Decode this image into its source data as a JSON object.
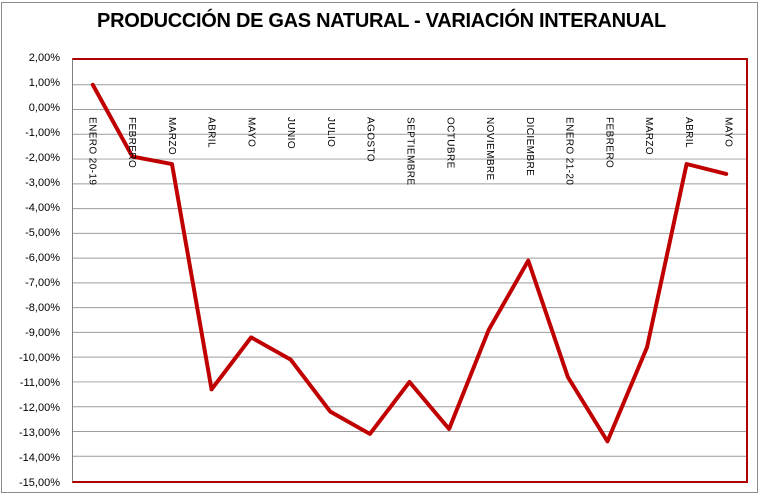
{
  "window": {
    "background": "#FFFFFF",
    "frame_border_color": "#8C8C8C"
  },
  "chart_data": {
    "type": "line",
    "title": "PRODUCCIÓN DE GAS NATURAL - VARIACIÓN INTERANUAL",
    "categories": [
      "ENERO 20-19",
      "FEBRERO",
      "MARZO",
      "ABRIL",
      "MAYO",
      "JUNIO",
      "JULIO",
      "AGOSTO",
      "SEPTIEMBRE",
      "OCTUBRE",
      "NOVIEMBRE",
      "DICIEMBRE",
      "ENERO 21-20",
      "FEBRERO",
      "MARZO",
      "ABRIL",
      "MAYO"
    ],
    "values": [
      1.0,
      -1.9,
      -2.2,
      -11.3,
      -9.2,
      -10.1,
      -12.2,
      -13.1,
      -11.0,
      -12.9,
      -8.9,
      -6.1,
      -10.8,
      -13.4,
      -9.6,
      -2.2,
      -2.6
    ],
    "unit": "%",
    "xlabel": "",
    "ylabel": "",
    "ylim": [
      -15,
      2
    ],
    "y_step": 1,
    "y_tick_labels": [
      "2,00%",
      "1,00%",
      "0,00%",
      "-1,00%",
      "-2,00%",
      "-3,00%",
      "-4,00%",
      "-5,00%",
      "-6,00%",
      "-7,00%",
      "-8,00%",
      "-9,00%",
      "-10,00%",
      "-11,00%",
      "-12,00%",
      "-13,00%",
      "-14,00%",
      "-15,00%"
    ],
    "grid": true,
    "legend": "none",
    "colors": {
      "line": "#C00000",
      "plot_border": "#B00000",
      "gridline": "#9C9C9C",
      "axis_line": "#7F7F7F",
      "text": "#000000"
    }
  }
}
